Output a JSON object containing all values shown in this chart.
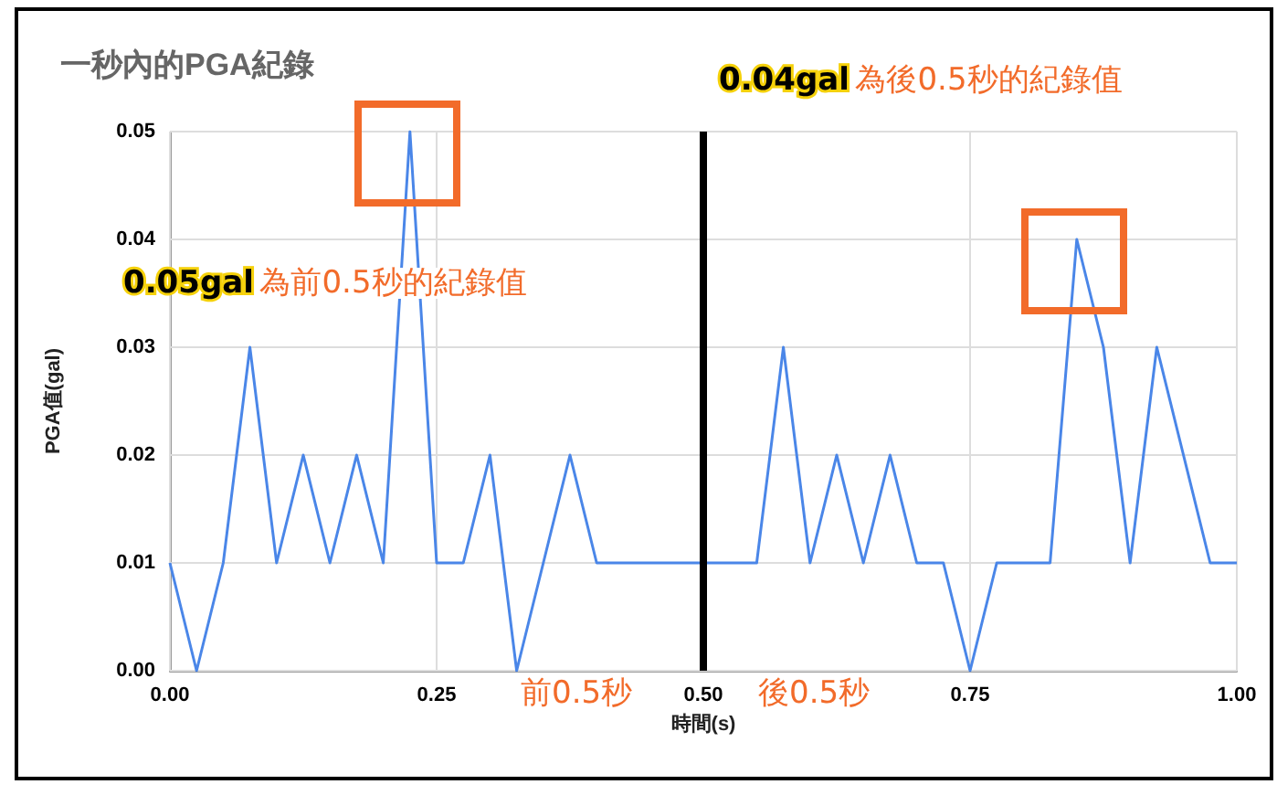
{
  "chart_data": {
    "type": "line",
    "title": "一秒內的PGA紀錄",
    "xlabel": "時間(s)",
    "ylabel": "PGA值(gal)",
    "x": [
      0,
      0.025,
      0.05,
      0.075,
      0.1,
      0.125,
      0.15,
      0.175,
      0.2,
      0.225,
      0.25,
      0.275,
      0.3,
      0.325,
      0.35,
      0.375,
      0.4,
      0.425,
      0.45,
      0.475,
      0.5,
      0.525,
      0.55,
      0.575,
      0.6,
      0.625,
      0.65,
      0.675,
      0.7,
      0.725,
      0.75,
      0.775,
      0.8,
      0.825,
      0.85,
      0.875,
      0.9,
      0.925,
      0.95,
      0.975,
      1
    ],
    "series": [
      {
        "color": "#4a86e8",
        "values": [
          0.01,
          0,
          0.01,
          0.03,
          0.01,
          0.02,
          0.01,
          0.02,
          0.01,
          0.05,
          0.01,
          0.01,
          0.02,
          0,
          0.01,
          0.02,
          0.01,
          0.01,
          0.01,
          0.01,
          0.01,
          0.01,
          0.01,
          0.03,
          0.01,
          0.02,
          0.01,
          0.02,
          0.01,
          0.01,
          0,
          0.01,
          0.01,
          0.01,
          0.04,
          0.03,
          0.01,
          0.03,
          0.02,
          0.01,
          0.01
        ]
      }
    ],
    "xlim": [
      0,
      1
    ],
    "xticks": [
      {
        "value": 0,
        "label": "0.00"
      },
      {
        "value": 0.25,
        "label": "0.25"
      },
      {
        "value": 0.5,
        "label": "0.50"
      },
      {
        "value": 0.75,
        "label": "0.75"
      },
      {
        "value": 1,
        "label": "1.00"
      }
    ],
    "ylim": [
      0,
      0.05
    ],
    "yticks": [
      {
        "value": 0,
        "label": "0.00"
      },
      {
        "value": 0.01,
        "label": "0.01"
      },
      {
        "value": 0.02,
        "label": "0.02"
      },
      {
        "value": 0.03,
        "label": "0.03"
      },
      {
        "value": 0.04,
        "label": "0.04"
      },
      {
        "value": 0.05,
        "label": "0.05"
      }
    ],
    "grid": true,
    "marker": "none",
    "line_style": "solid",
    "ref_lines": [
      {
        "axis": "x",
        "value": 0.5,
        "color": "#000000"
      }
    ],
    "annotations": [
      "0.05gal 為前0.5秒的紀錄值",
      "0.04gal 為後0.5秒的紀錄值",
      "前0.5秒",
      "後0.5秒"
    ]
  }
}
